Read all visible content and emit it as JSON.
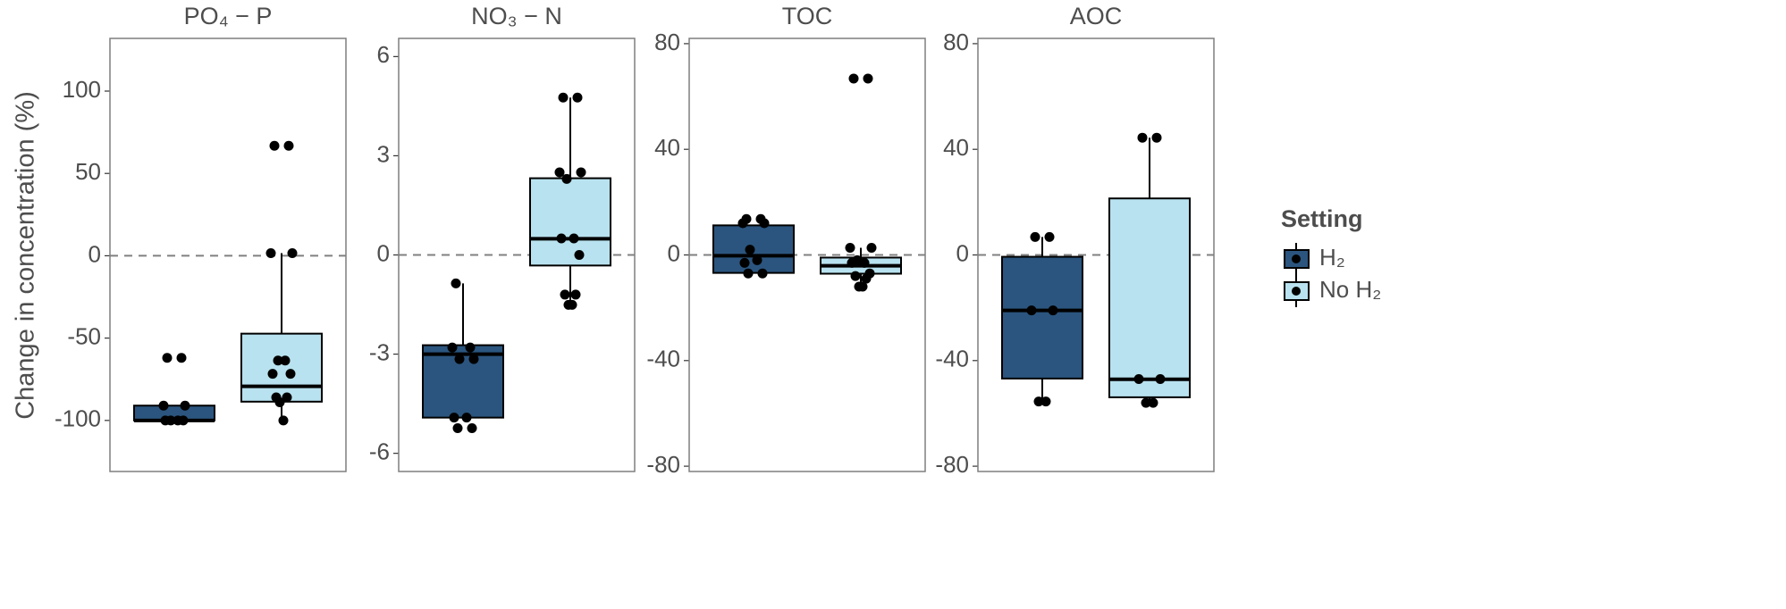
{
  "ylabel": "Change in concentration (%)",
  "legend": {
    "title": "Setting",
    "items": [
      {
        "name": "H₂",
        "color": "#2b557e"
      },
      {
        "name": "No H₂",
        "color": "#b8e2ef"
      }
    ]
  },
  "chart_data": [
    {
      "type": "box",
      "title": "PO₄ − P",
      "ylim": [
        -131,
        132
      ],
      "yticks": [
        -100,
        -50,
        0,
        50,
        100
      ],
      "hline": 0,
      "boxes": [
        {
          "min": -100,
          "q1": -100,
          "median": -100,
          "q3": -91,
          "max": -91,
          "points": [
            -62,
            -62,
            -91,
            -91,
            -100,
            -100,
            -100,
            -100
          ]
        },
        {
          "min": -99.5,
          "q1": -88.6,
          "median": -79.3,
          "q3": -47.3,
          "max": 1.6,
          "points": [
            66.8,
            66.8,
            1.6,
            1.6,
            -63.6,
            -63.6,
            -71.7,
            -71.7,
            -86,
            -86,
            -89,
            -100
          ]
        }
      ]
    },
    {
      "type": "box",
      "title": "NO₃ − N",
      "ylim": [
        -6.55,
        6.55
      ],
      "yticks": [
        -6,
        -3,
        0,
        3,
        6
      ],
      "hline": 0,
      "boxes": [
        {
          "min": -4.92,
          "q1": -4.92,
          "median": -3.0,
          "q3": -2.73,
          "max": -0.86,
          "points": [
            -0.86,
            -2.8,
            -2.8,
            -3.15,
            -3.15,
            -4.92,
            -4.92,
            -5.24,
            -5.24
          ]
        },
        {
          "min": -1.51,
          "q1": -0.32,
          "median": 0.49,
          "q3": 2.32,
          "max": 4.76,
          "points": [
            4.76,
            4.76,
            2.5,
            2.5,
            2.3,
            0.5,
            0.5,
            0,
            -1.2,
            -1.2,
            -1.51,
            -1.51
          ]
        }
      ]
    },
    {
      "type": "box",
      "title": "TOC",
      "ylim": [
        -82,
        82
      ],
      "yticks": [
        -80,
        -40,
        0,
        40,
        80
      ],
      "hline": 0,
      "boxes": [
        {
          "min": -6.8,
          "q1": -6.8,
          "median": -0.3,
          "q3": 11.2,
          "max": 11.2,
          "points": [
            13.6,
            13.6,
            12,
            12,
            2,
            -2,
            -3,
            -7,
            -7
          ]
        },
        {
          "min": -12.2,
          "q1": -7.1,
          "median": -4.1,
          "q3": -1,
          "max": 2.7,
          "points": [
            66.8,
            66.8,
            2.7,
            2.7,
            -2,
            -3,
            -3,
            -7,
            -8,
            -9,
            -12,
            -12
          ]
        }
      ]
    },
    {
      "type": "box",
      "title": "AOC",
      "ylim": [
        -82,
        82
      ],
      "yticks": [
        -80,
        -40,
        0,
        40,
        80
      ],
      "hline": 0,
      "boxes": [
        {
          "min": -55.5,
          "q1": -46.8,
          "median": -21,
          "q3": -0.7,
          "max": 6.8,
          "points": [
            6.8,
            6.8,
            -21,
            -21,
            -55.5,
            -55.5
          ]
        },
        {
          "min": -56,
          "q1": -53.9,
          "median": -47.1,
          "q3": 21.4,
          "max": 44.4,
          "points": [
            44.4,
            44.4,
            -47,
            -47,
            -56,
            -56
          ]
        }
      ]
    }
  ]
}
